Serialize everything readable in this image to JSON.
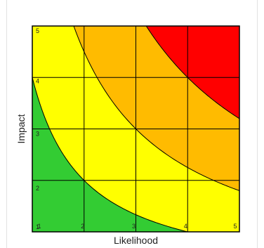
{
  "chart_data": {
    "type": "heatmap",
    "title": "",
    "xlabel": "Likelihood",
    "ylabel": "Impact",
    "xlim": [
      1,
      5
    ],
    "ylim": [
      1,
      5
    ],
    "x_ticks": [
      "1",
      "2",
      "3",
      "4",
      "5"
    ],
    "y_ticks": [
      "1",
      "2",
      "3",
      "4",
      "5"
    ],
    "grid": true,
    "zones": [
      {
        "color": "#33cc33",
        "below_product": 4
      },
      {
        "color": "#ffff00",
        "below_product": 9
      },
      {
        "color": "#ffbb00",
        "below_product": 16
      },
      {
        "color": "#ff0000",
        "below_product": 25
      }
    ],
    "boundary_products": [
      4,
      9,
      16
    ]
  }
}
